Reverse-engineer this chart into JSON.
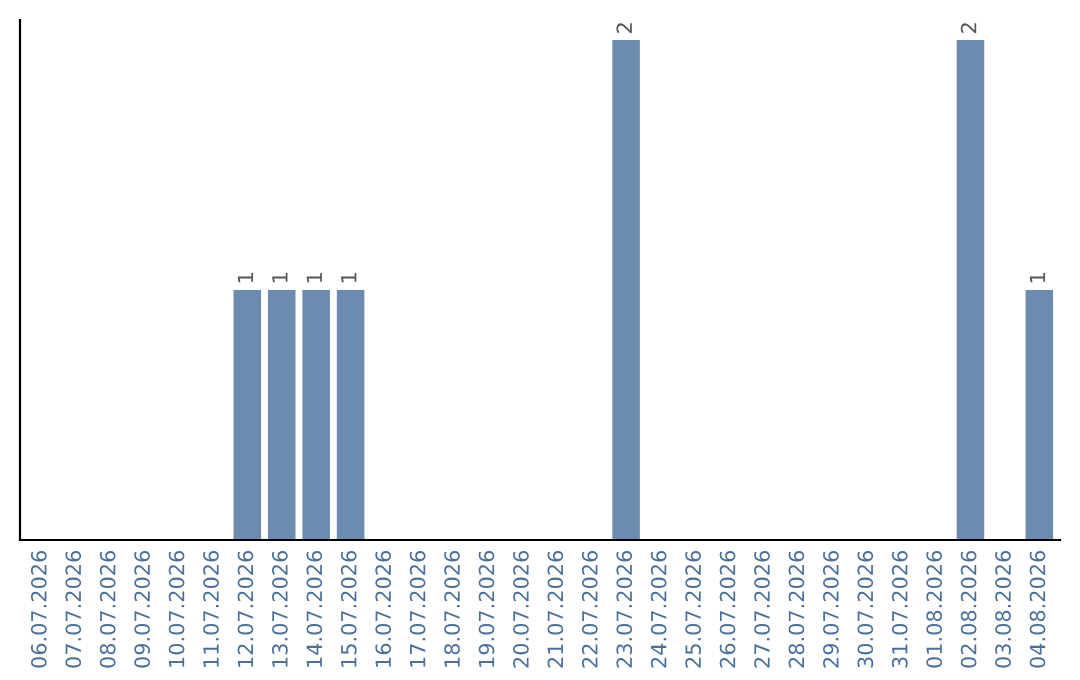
{
  "chart_data": {
    "type": "bar",
    "categories": [
      "06.07.2026",
      "07.07.2026",
      "08.07.2026",
      "09.07.2026",
      "10.07.2026",
      "11.07.2026",
      "12.07.2026",
      "13.07.2026",
      "14.07.2026",
      "15.07.2026",
      "16.07.2026",
      "17.07.2026",
      "18.07.2026",
      "19.07.2026",
      "20.07.2026",
      "21.07.2026",
      "22.07.2026",
      "23.07.2026",
      "24.07.2026",
      "25.07.2026",
      "26.07.2026",
      "27.07.2026",
      "28.07.2026",
      "29.07.2026",
      "30.07.2026",
      "31.07.2026",
      "01.08.2026",
      "02.08.2026",
      "03.08.2026",
      "04.08.2026"
    ],
    "values": [
      0,
      0,
      0,
      0,
      0,
      0,
      1,
      1,
      1,
      1,
      0,
      0,
      0,
      0,
      0,
      0,
      0,
      2,
      0,
      0,
      0,
      0,
      0,
      0,
      0,
      0,
      0,
      2,
      0,
      1
    ],
    "value_labels": [
      null,
      null,
      null,
      null,
      null,
      null,
      "1",
      "1",
      "1",
      "1",
      null,
      null,
      null,
      null,
      null,
      null,
      null,
      "2",
      null,
      null,
      null,
      null,
      null,
      null,
      null,
      null,
      null,
      "2",
      null,
      "1"
    ],
    "color": "#6b8cae",
    "tick_labels": "x",
    "grid": false,
    "legend": false
  }
}
